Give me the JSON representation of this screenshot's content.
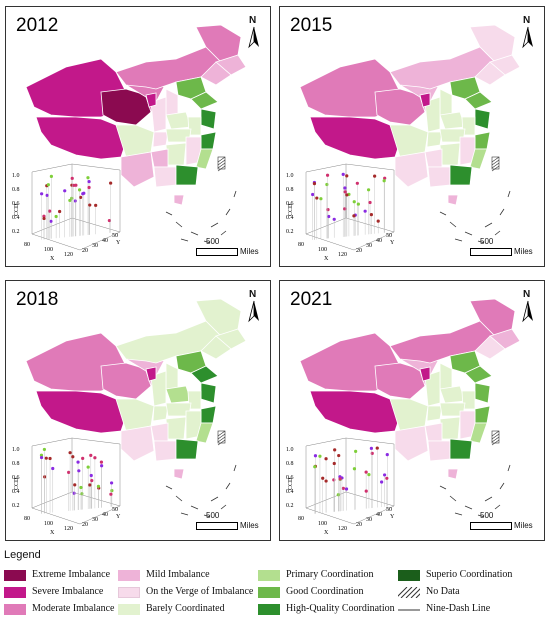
{
  "panels": [
    {
      "year": "2012",
      "regions": [
        "extreme",
        "severe",
        "moderate",
        "mild",
        "verge",
        "barely",
        "primary",
        "good",
        "hq",
        "superio"
      ]
    },
    {
      "year": "2015"
    },
    {
      "year": "2018"
    },
    {
      "year": "2021"
    }
  ],
  "north_label": "N",
  "scale": {
    "value": "500",
    "unit": "Miles"
  },
  "inset_axes": {
    "z_label": "CCD",
    "z_ticks": [
      "1.0",
      "0.8",
      "0.6",
      "0.4",
      "0.2"
    ],
    "x_label": "X",
    "x_ticks": [
      "80",
      "100",
      "120"
    ],
    "y_label": "Y",
    "y_ticks": [
      "20",
      "30",
      "40",
      "50"
    ]
  },
  "legend": {
    "title": "Legend",
    "items": [
      {
        "label": "Extreme Imbalance",
        "color": "#8b0a50"
      },
      {
        "label": "Severe Imbalance",
        "color": "#c2188a"
      },
      {
        "label": "Moderate Imbalance",
        "color": "#e07ab8"
      },
      {
        "label": "Mild Imbalance",
        "color": "#eeb3d8"
      },
      {
        "label": "On the Verge of Imbalance",
        "color": "#f7dbeb"
      },
      {
        "label": "Barely Coordinated",
        "color": "#e2f2cf"
      },
      {
        "label": "Primary Coordination",
        "color": "#b3df8f"
      },
      {
        "label": "Good Coordination",
        "color": "#6db84a"
      },
      {
        "label": "High-Quality Coordination",
        "color": "#2d8f2d"
      },
      {
        "label": "Superio Coordination",
        "color": "#1b5e1b"
      },
      {
        "label": "No Data",
        "color": "hatch"
      },
      {
        "label": "Nine-Dash Line",
        "color": "line"
      }
    ]
  }
}
